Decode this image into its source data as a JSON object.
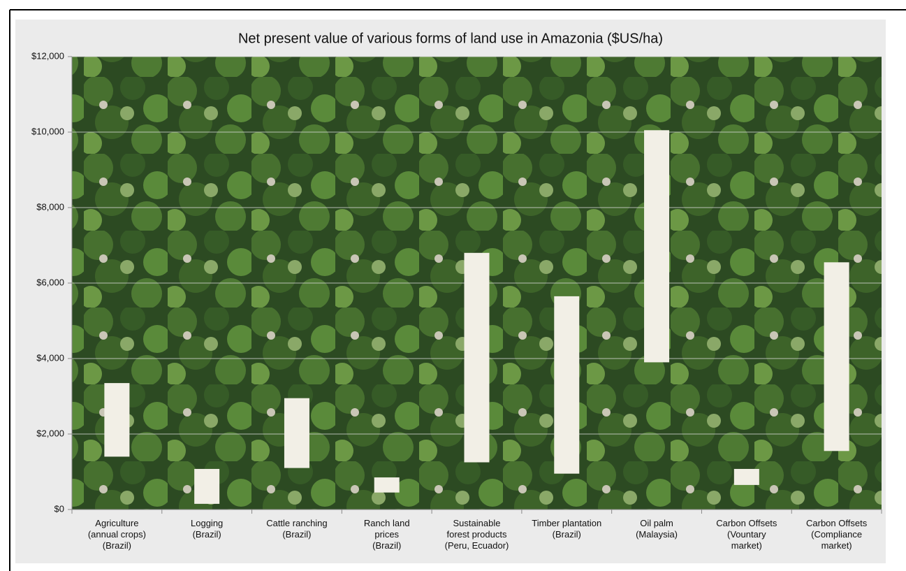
{
  "chart_data": {
    "type": "range_bar",
    "title": "Net present value of various forms of land use in Amazonia ($US/ha)",
    "categories": [
      "Agriculture\n(annual crops)\n(Brazil)",
      "Logging\n(Brazil)",
      "Cattle ranching\n(Brazil)",
      "Ranch land\nprices\n(Brazil)",
      "Sustainable\nforest products\n(Peru, Ecuador)",
      "Timber plantation\n(Brazil)",
      "Oil palm\n(Malaysia)",
      "Carbon Offsets\n(Vountary\nmarket)",
      "Carbon Offsets\n(Compliance\nmarket)"
    ],
    "low": [
      1400,
      150,
      1100,
      450,
      1250,
      950,
      3900,
      650,
      1550
    ],
    "high": [
      3350,
      1075,
      2950,
      850,
      6800,
      5650,
      10050,
      1075,
      6550
    ],
    "color": "#f2efe6",
    "ylim": [
      0,
      12000
    ],
    "yticks": [
      {
        "value": 0,
        "label": "$0"
      },
      {
        "value": 2000,
        "label": "$2,000"
      },
      {
        "value": 4000,
        "label": "$4,000"
      },
      {
        "value": 6000,
        "label": "$6,000"
      },
      {
        "value": 8000,
        "label": "$8,000"
      },
      {
        "value": 10000,
        "label": "$10,000"
      },
      {
        "value": 12000,
        "label": "$12,000"
      }
    ],
    "grid": true
  }
}
